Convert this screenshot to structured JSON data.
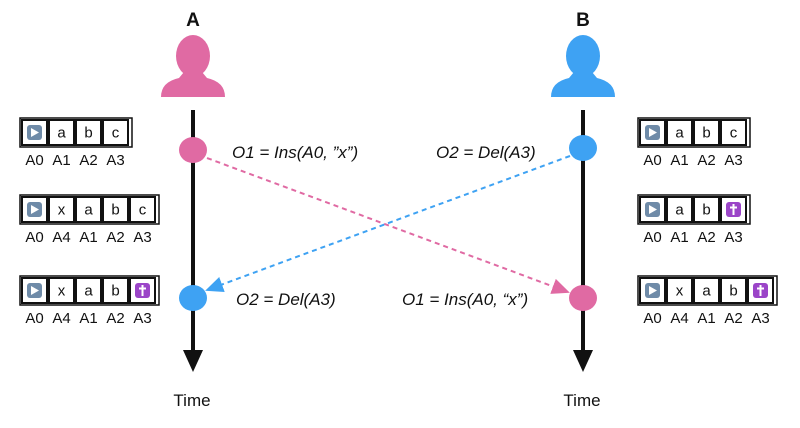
{
  "colors": {
    "pink": "#e06aa3",
    "blue": "#3ea2f3",
    "start_icon": "#6f8ba8",
    "tombstone_icon": "#9b45c8"
  },
  "users": [
    {
      "name": "A",
      "color": "pink",
      "time_label": "Time"
    },
    {
      "name": "B",
      "color": "blue",
      "time_label": "Time"
    }
  ],
  "states": {
    "A": [
      {
        "cells": [
          "start-icon",
          "a",
          "b",
          "c"
        ],
        "ids": [
          "A0",
          "A1",
          "A2",
          "A3"
        ]
      },
      {
        "cells": [
          "start-icon",
          "x",
          "a",
          "b",
          "c"
        ],
        "ids": [
          "A0",
          "A4",
          "A1",
          "A2",
          "A3"
        ]
      },
      {
        "cells": [
          "start-icon",
          "x",
          "a",
          "b",
          "tombstone-icon"
        ],
        "ids": [
          "A0",
          "A4",
          "A1",
          "A2",
          "A3"
        ]
      }
    ],
    "B": [
      {
        "cells": [
          "start-icon",
          "a",
          "b",
          "c"
        ],
        "ids": [
          "A0",
          "A1",
          "A2",
          "A3"
        ]
      },
      {
        "cells": [
          "start-icon",
          "a",
          "b",
          "tombstone-icon"
        ],
        "ids": [
          "A0",
          "A1",
          "A2",
          "A3"
        ]
      },
      {
        "cells": [
          "start-icon",
          "x",
          "a",
          "b",
          "tombstone-icon"
        ],
        "ids": [
          "A0",
          "A4",
          "A1",
          "A2",
          "A3"
        ]
      }
    ]
  },
  "operations": {
    "a_local": "O1 = Ins(A0, ”x”)",
    "b_local": "O2 = Del(A3)",
    "a_remote": "O2 = Del(A3)",
    "b_remote": "O1 = Ins(A0, “x”)"
  }
}
